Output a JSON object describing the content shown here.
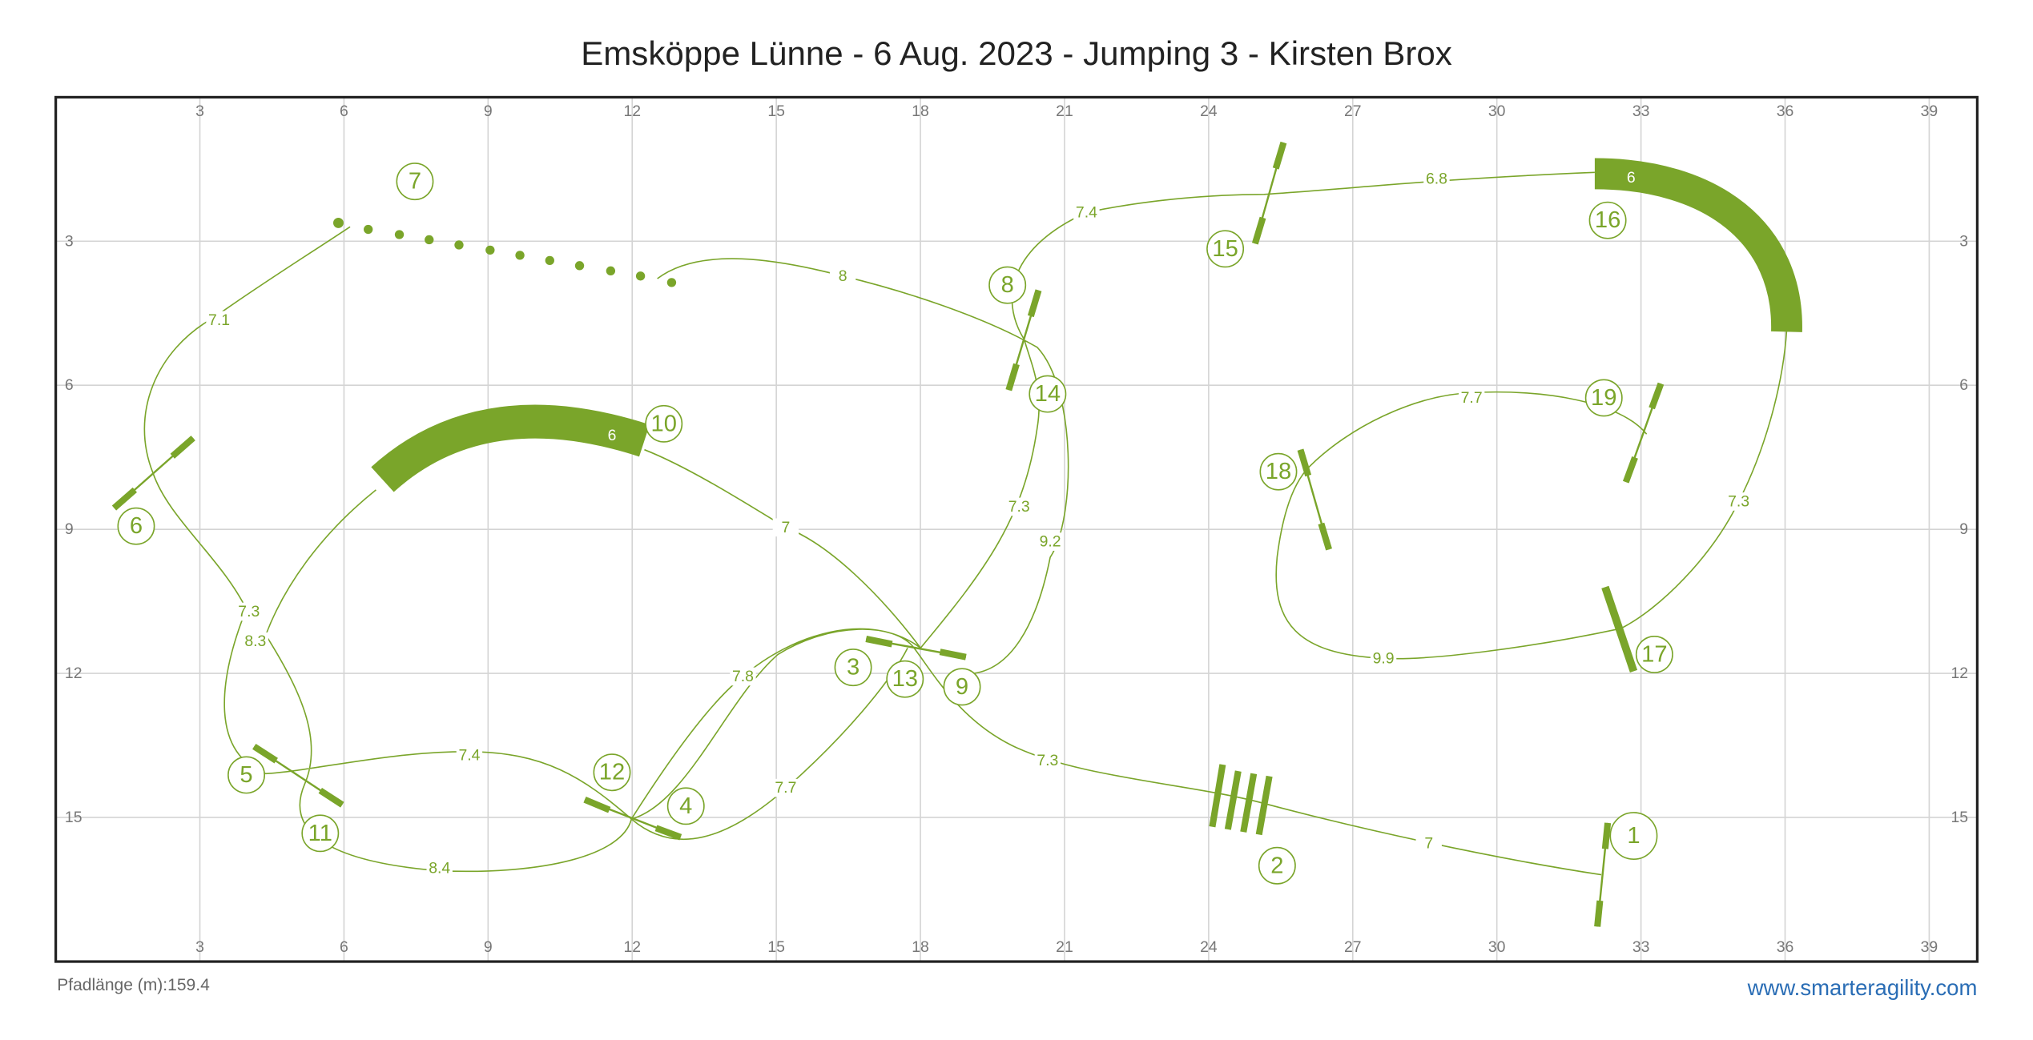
{
  "title": "Emsköppe Lünne - 6 Aug. 2023 - Jumping 3 - Kirsten Brox",
  "x_ticks": [
    3,
    6,
    9,
    12,
    15,
    18,
    21,
    24,
    27,
    30,
    33,
    36,
    39
  ],
  "y_ticks": [
    3,
    6,
    9,
    12,
    15
  ],
  "obstacles": [
    1,
    2,
    3,
    4,
    5,
    6,
    7,
    8,
    9,
    10,
    11,
    12,
    13,
    14,
    15,
    16,
    17,
    18,
    19
  ],
  "tunnel_lengths": [
    6,
    6
  ],
  "distances": [
    7,
    7.3,
    7.7,
    7.4,
    7.3,
    7.1,
    8,
    9.2,
    7,
    8.3,
    8.4,
    7.8,
    7.3,
    7.4,
    6.8,
    7.3,
    9.9,
    7.7
  ],
  "footer": {
    "path_length_label": "Pfadlänge (m):",
    "path_length": 159.4,
    "website": "www.smarteragility.com"
  }
}
